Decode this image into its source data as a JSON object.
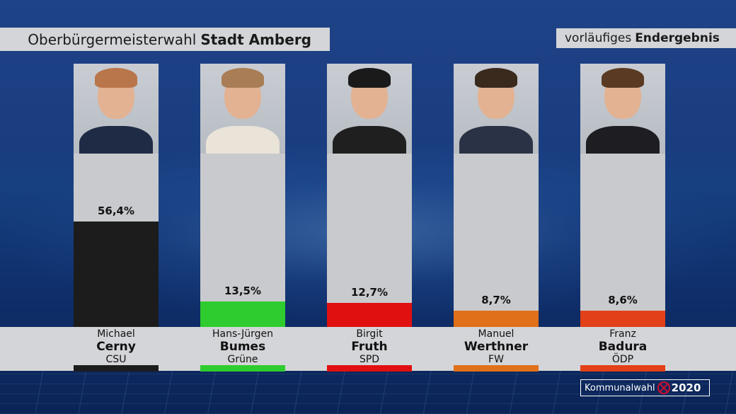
{
  "header": {
    "title_prefix": "Oberbürgermeisterwahl",
    "title_city": "Stadt Amberg",
    "status_prefix": "vorläufiges",
    "status_main": "Endergebnis"
  },
  "logo": {
    "text": "Kommunalwahl",
    "year": "2020"
  },
  "chart_data": {
    "type": "bar",
    "title": "Oberbürgermeisterwahl Stadt Amberg",
    "ylim": [
      0,
      100
    ],
    "categories": [
      "Michael Cerny",
      "Hans-Jürgen Bumes",
      "Birgit Fruth",
      "Manuel Werthner",
      "Franz Badura"
    ],
    "values": [
      56.4,
      13.5,
      12.7,
      8.7,
      8.6
    ],
    "value_labels": [
      "56,4%",
      "13,5%",
      "12,7%",
      "8,7%",
      "8,6%"
    ],
    "candidates": [
      {
        "first": "Michael",
        "last": "Cerny",
        "party": "CSU",
        "pct": "56,4%",
        "value": 56.4,
        "color": "#1c1c1c",
        "hair": "#b9764a",
        "suit": "#1f2b45"
      },
      {
        "first": "Hans-Jürgen",
        "last": "Bumes",
        "party": "Grüne",
        "pct": "13,5%",
        "value": 13.5,
        "color": "#2ecc2e",
        "hair": "#a97d55",
        "suit": "#e9e3d8"
      },
      {
        "first": "Birgit",
        "last": "Fruth",
        "party": "SPD",
        "pct": "12,7%",
        "value": 12.7,
        "color": "#e01010",
        "hair": "#1a1a1a",
        "suit": "#1f1f1f"
      },
      {
        "first": "Manuel",
        "last": "Werthner",
        "party": "FW",
        "pct": "8,7%",
        "value": 8.7,
        "color": "#e0701a",
        "hair": "#3a2a1e",
        "suit": "#2a3346"
      },
      {
        "first": "Franz",
        "last": "Badura",
        "party": "ÖDP",
        "pct": "8,6%",
        "value": 8.6,
        "color": "#e24018",
        "hair": "#5a3a22",
        "suit": "#1d1d22"
      }
    ]
  }
}
